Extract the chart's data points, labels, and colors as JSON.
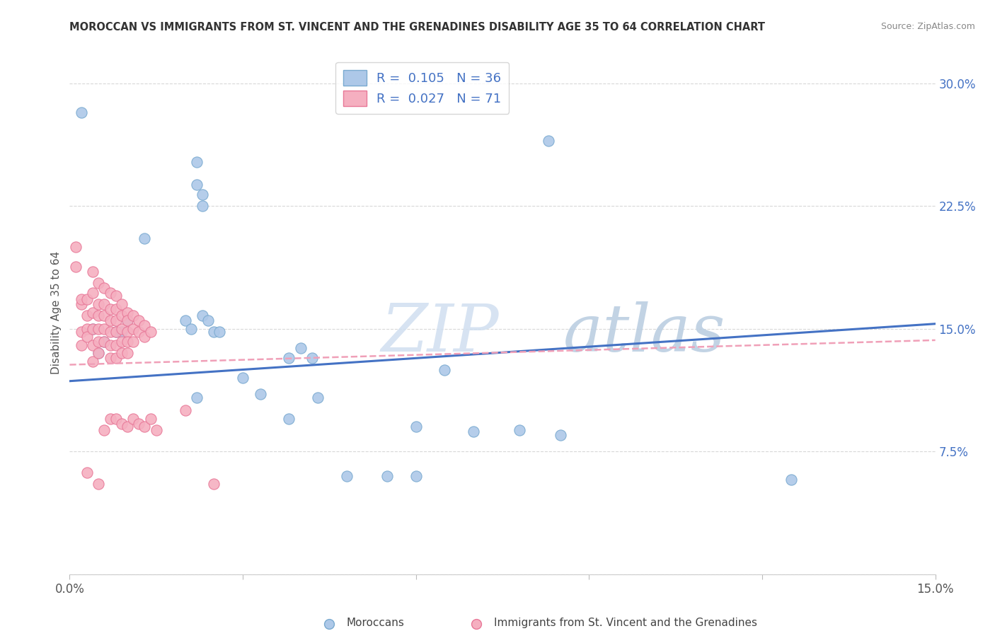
{
  "title": "MOROCCAN VS IMMIGRANTS FROM ST. VINCENT AND THE GRENADINES DISABILITY AGE 35 TO 64 CORRELATION CHART",
  "source": "Source: ZipAtlas.com",
  "ylabel": "Disability Age 35 to 64",
  "xlim": [
    0.0,
    0.15
  ],
  "ylim": [
    0.0,
    0.32
  ],
  "xticks": [
    0.0,
    0.03,
    0.06,
    0.09,
    0.12,
    0.15
  ],
  "yticks_right": [
    0.0,
    0.075,
    0.15,
    0.225,
    0.3
  ],
  "ytick_labels_right": [
    "",
    "7.5%",
    "15.0%",
    "22.5%",
    "30.0%"
  ],
  "watermark_zip": "ZIP",
  "watermark_atlas": "atlas",
  "legend_R1": "R= 0.105",
  "legend_N1": "N = 36",
  "legend_R2": "R= 0.027",
  "legend_N2": "N = 71",
  "color_moroccan_fill": "#adc8e8",
  "color_moroccan_edge": "#7aaad0",
  "color_svg_fill": "#f5afc0",
  "color_svg_edge": "#e87898",
  "color_line_moroccan": "#4472c4",
  "color_line_svg": "#f0a0b8",
  "grid_color": "#d8d8d8",
  "moroccan_x": [
    0.022,
    0.023,
    0.023,
    0.022,
    0.002,
    0.004,
    0.005,
    0.006,
    0.008,
    0.009,
    0.01,
    0.013,
    0.02,
    0.021,
    0.023,
    0.024,
    0.025,
    0.026,
    0.03,
    0.033,
    0.038,
    0.04,
    0.042,
    0.06,
    0.065,
    0.07,
    0.083,
    0.125,
    0.022,
    0.038,
    0.043,
    0.048,
    0.055,
    0.06,
    0.078,
    0.085
  ],
  "moroccan_y": [
    0.238,
    0.232,
    0.225,
    0.252,
    0.282,
    0.15,
    0.135,
    0.142,
    0.148,
    0.148,
    0.155,
    0.205,
    0.155,
    0.15,
    0.158,
    0.155,
    0.148,
    0.148,
    0.12,
    0.11,
    0.132,
    0.138,
    0.132,
    0.09,
    0.125,
    0.087,
    0.265,
    0.058,
    0.108,
    0.095,
    0.108,
    0.06,
    0.06,
    0.06,
    0.088,
    0.085
  ],
  "svg_x": [
    0.001,
    0.001,
    0.002,
    0.002,
    0.002,
    0.002,
    0.003,
    0.003,
    0.003,
    0.003,
    0.003,
    0.004,
    0.004,
    0.004,
    0.004,
    0.004,
    0.004,
    0.005,
    0.005,
    0.005,
    0.005,
    0.005,
    0.005,
    0.005,
    0.006,
    0.006,
    0.006,
    0.006,
    0.006,
    0.006,
    0.007,
    0.007,
    0.007,
    0.007,
    0.007,
    0.007,
    0.007,
    0.008,
    0.008,
    0.008,
    0.008,
    0.008,
    0.008,
    0.008,
    0.009,
    0.009,
    0.009,
    0.009,
    0.009,
    0.009,
    0.01,
    0.01,
    0.01,
    0.01,
    0.01,
    0.01,
    0.011,
    0.011,
    0.011,
    0.011,
    0.012,
    0.012,
    0.012,
    0.013,
    0.013,
    0.013,
    0.014,
    0.014,
    0.015,
    0.02,
    0.025
  ],
  "svg_y": [
    0.2,
    0.188,
    0.165,
    0.14,
    0.168,
    0.148,
    0.168,
    0.158,
    0.15,
    0.145,
    0.062,
    0.185,
    0.172,
    0.16,
    0.15,
    0.14,
    0.13,
    0.178,
    0.165,
    0.158,
    0.15,
    0.142,
    0.135,
    0.055,
    0.175,
    0.165,
    0.158,
    0.15,
    0.142,
    0.088,
    0.172,
    0.162,
    0.155,
    0.148,
    0.14,
    0.132,
    0.095,
    0.17,
    0.162,
    0.155,
    0.148,
    0.14,
    0.132,
    0.095,
    0.165,
    0.158,
    0.15,
    0.142,
    0.135,
    0.092,
    0.16,
    0.155,
    0.148,
    0.142,
    0.135,
    0.09,
    0.158,
    0.15,
    0.142,
    0.095,
    0.155,
    0.148,
    0.092,
    0.152,
    0.145,
    0.09,
    0.148,
    0.095,
    0.088,
    0.1,
    0.055
  ],
  "moroc_line_x": [
    0.0,
    0.15
  ],
  "moroc_line_y": [
    0.118,
    0.153
  ],
  "svg_line_x": [
    0.0,
    0.15
  ],
  "svg_line_y": [
    0.128,
    0.143
  ]
}
